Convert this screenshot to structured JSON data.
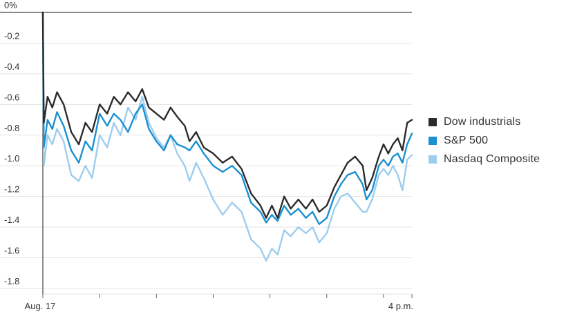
{
  "chart_data": {
    "type": "line",
    "xlabel": "",
    "ylabel": "",
    "ylim": [
      -1.8,
      0
    ],
    "y_ticks": [
      {
        "value": 0,
        "label": "0%"
      },
      {
        "value": -0.2,
        "label": "-0.2"
      },
      {
        "value": -0.4,
        "label": "-0.4"
      },
      {
        "value": -0.6,
        "label": "-0.6"
      },
      {
        "value": -0.8,
        "label": "-0.8"
      },
      {
        "value": -1.0,
        "label": "-1.0"
      },
      {
        "value": -1.2,
        "label": "-1.2"
      },
      {
        "value": -1.4,
        "label": "-1.4"
      },
      {
        "value": -1.6,
        "label": "-1.6"
      },
      {
        "value": -1.8,
        "label": "-1.8"
      }
    ],
    "x_ticks": [
      {
        "time": "09:30",
        "label": "Aug. 17"
      },
      {
        "time": "10:30",
        "label": ""
      },
      {
        "time": "11:30",
        "label": ""
      },
      {
        "time": "12:30",
        "label": ""
      },
      {
        "time": "13:30",
        "label": ""
      },
      {
        "time": "14:30",
        "label": ""
      },
      {
        "time": "15:30",
        "label": ""
      },
      {
        "time": "16:00",
        "label": "4 p.m."
      }
    ],
    "x_range": [
      "09:30",
      "16:00"
    ],
    "grid": "horizontal",
    "legend_position": "right",
    "series": [
      {
        "name": "Dow industrials",
        "color": "#2b2b2b",
        "points": [
          [
            "09:30",
            0
          ],
          [
            "09:31",
            -0.72
          ],
          [
            "09:35",
            -0.55
          ],
          [
            "09:40",
            -0.62
          ],
          [
            "09:45",
            -0.52
          ],
          [
            "09:52",
            -0.6
          ],
          [
            "10:00",
            -0.78
          ],
          [
            "10:08",
            -0.86
          ],
          [
            "10:15",
            -0.72
          ],
          [
            "10:22",
            -0.78
          ],
          [
            "10:30",
            -0.6
          ],
          [
            "10:38",
            -0.66
          ],
          [
            "10:45",
            -0.55
          ],
          [
            "10:52",
            -0.6
          ],
          [
            "11:00",
            -0.52
          ],
          [
            "11:08",
            -0.58
          ],
          [
            "11:15",
            -0.5
          ],
          [
            "11:22",
            -0.62
          ],
          [
            "11:30",
            -0.66
          ],
          [
            "11:38",
            -0.7
          ],
          [
            "11:45",
            -0.62
          ],
          [
            "11:52",
            -0.68
          ],
          [
            "12:00",
            -0.74
          ],
          [
            "12:05",
            -0.84
          ],
          [
            "12:12",
            -0.78
          ],
          [
            "12:20",
            -0.88
          ],
          [
            "12:30",
            -0.92
          ],
          [
            "12:40",
            -0.98
          ],
          [
            "12:50",
            -0.94
          ],
          [
            "13:00",
            -1.02
          ],
          [
            "13:10",
            -1.18
          ],
          [
            "13:20",
            -1.26
          ],
          [
            "13:26",
            -1.34
          ],
          [
            "13:32",
            -1.26
          ],
          [
            "13:38",
            -1.34
          ],
          [
            "13:45",
            -1.2
          ],
          [
            "13:52",
            -1.28
          ],
          [
            "14:00",
            -1.22
          ],
          [
            "14:08",
            -1.28
          ],
          [
            "14:15",
            -1.22
          ],
          [
            "14:22",
            -1.3
          ],
          [
            "14:30",
            -1.26
          ],
          [
            "14:38",
            -1.14
          ],
          [
            "14:45",
            -1.06
          ],
          [
            "14:52",
            -0.98
          ],
          [
            "15:00",
            -0.94
          ],
          [
            "15:08",
            -1.0
          ],
          [
            "15:12",
            -1.16
          ],
          [
            "15:18",
            -1.08
          ],
          [
            "15:25",
            -0.94
          ],
          [
            "15:30",
            -0.86
          ],
          [
            "15:35",
            -0.92
          ],
          [
            "15:40",
            -0.86
          ],
          [
            "15:45",
            -0.82
          ],
          [
            "15:50",
            -0.9
          ],
          [
            "15:55",
            -0.72
          ],
          [
            "16:00",
            -0.7
          ]
        ]
      },
      {
        "name": "S&P 500",
        "color": "#1a90d0",
        "points": [
          [
            "09:30",
            0
          ],
          [
            "09:31",
            -0.88
          ],
          [
            "09:35",
            -0.7
          ],
          [
            "09:40",
            -0.76
          ],
          [
            "09:45",
            -0.65
          ],
          [
            "09:52",
            -0.74
          ],
          [
            "10:00",
            -0.9
          ],
          [
            "10:08",
            -0.98
          ],
          [
            "10:15",
            -0.84
          ],
          [
            "10:22",
            -0.9
          ],
          [
            "10:30",
            -0.66
          ],
          [
            "10:38",
            -0.74
          ],
          [
            "10:45",
            -0.66
          ],
          [
            "10:52",
            -0.7
          ],
          [
            "11:00",
            -0.78
          ],
          [
            "11:08",
            -0.66
          ],
          [
            "11:15",
            -0.6
          ],
          [
            "11:22",
            -0.76
          ],
          [
            "11:30",
            -0.84
          ],
          [
            "11:38",
            -0.9
          ],
          [
            "11:45",
            -0.8
          ],
          [
            "11:52",
            -0.86
          ],
          [
            "12:00",
            -0.88
          ],
          [
            "12:05",
            -0.9
          ],
          [
            "12:12",
            -0.84
          ],
          [
            "12:20",
            -0.92
          ],
          [
            "12:30",
            -1.0
          ],
          [
            "12:40",
            -1.04
          ],
          [
            "12:50",
            -1.0
          ],
          [
            "13:00",
            -1.06
          ],
          [
            "13:10",
            -1.24
          ],
          [
            "13:20",
            -1.3
          ],
          [
            "13:26",
            -1.37
          ],
          [
            "13:32",
            -1.32
          ],
          [
            "13:38",
            -1.36
          ],
          [
            "13:45",
            -1.26
          ],
          [
            "13:52",
            -1.32
          ],
          [
            "14:00",
            -1.28
          ],
          [
            "14:08",
            -1.34
          ],
          [
            "14:15",
            -1.3
          ],
          [
            "14:22",
            -1.38
          ],
          [
            "14:30",
            -1.34
          ],
          [
            "14:38",
            -1.2
          ],
          [
            "14:45",
            -1.12
          ],
          [
            "14:52",
            -1.06
          ],
          [
            "15:00",
            -1.04
          ],
          [
            "15:08",
            -1.12
          ],
          [
            "15:12",
            -1.22
          ],
          [
            "15:18",
            -1.16
          ],
          [
            "15:25",
            -1.0
          ],
          [
            "15:30",
            -0.96
          ],
          [
            "15:35",
            -1.0
          ],
          [
            "15:40",
            -0.94
          ],
          [
            "15:45",
            -0.92
          ],
          [
            "15:50",
            -0.98
          ],
          [
            "15:55",
            -0.86
          ],
          [
            "16:00",
            -0.79
          ]
        ]
      },
      {
        "name": "Nasdaq Composite",
        "color": "#9dcdee",
        "points": [
          [
            "09:30",
            0
          ],
          [
            "09:31",
            -1.0
          ],
          [
            "09:35",
            -0.8
          ],
          [
            "09:40",
            -0.86
          ],
          [
            "09:45",
            -0.76
          ],
          [
            "09:52",
            -0.84
          ],
          [
            "10:00",
            -1.06
          ],
          [
            "10:08",
            -1.1
          ],
          [
            "10:15",
            -1.0
          ],
          [
            "10:22",
            -1.08
          ],
          [
            "10:30",
            -0.8
          ],
          [
            "10:38",
            -0.88
          ],
          [
            "10:45",
            -0.72
          ],
          [
            "10:52",
            -0.8
          ],
          [
            "11:00",
            -0.62
          ],
          [
            "11:08",
            -0.7
          ],
          [
            "11:15",
            -0.55
          ],
          [
            "11:22",
            -0.72
          ],
          [
            "11:30",
            -0.82
          ],
          [
            "11:38",
            -0.88
          ],
          [
            "11:45",
            -0.8
          ],
          [
            "11:52",
            -0.92
          ],
          [
            "12:00",
            -1.0
          ],
          [
            "12:05",
            -1.1
          ],
          [
            "12:12",
            -0.98
          ],
          [
            "12:20",
            -1.08
          ],
          [
            "12:30",
            -1.22
          ],
          [
            "12:40",
            -1.32
          ],
          [
            "12:50",
            -1.24
          ],
          [
            "13:00",
            -1.3
          ],
          [
            "13:10",
            -1.48
          ],
          [
            "13:20",
            -1.54
          ],
          [
            "13:26",
            -1.62
          ],
          [
            "13:32",
            -1.54
          ],
          [
            "13:38",
            -1.58
          ],
          [
            "13:45",
            -1.42
          ],
          [
            "13:52",
            -1.46
          ],
          [
            "14:00",
            -1.4
          ],
          [
            "14:08",
            -1.44
          ],
          [
            "14:15",
            -1.4
          ],
          [
            "14:22",
            -1.5
          ],
          [
            "14:30",
            -1.44
          ],
          [
            "14:38",
            -1.28
          ],
          [
            "14:45",
            -1.2
          ],
          [
            "14:52",
            -1.18
          ],
          [
            "15:00",
            -1.24
          ],
          [
            "15:08",
            -1.3
          ],
          [
            "15:12",
            -1.3
          ],
          [
            "15:18",
            -1.22
          ],
          [
            "15:25",
            -1.06
          ],
          [
            "15:30",
            -1.02
          ],
          [
            "15:35",
            -1.06
          ],
          [
            "15:40",
            -1.0
          ],
          [
            "15:45",
            -1.06
          ],
          [
            "15:50",
            -1.16
          ],
          [
            "15:55",
            -0.96
          ],
          [
            "16:00",
            -0.93
          ]
        ]
      }
    ]
  }
}
